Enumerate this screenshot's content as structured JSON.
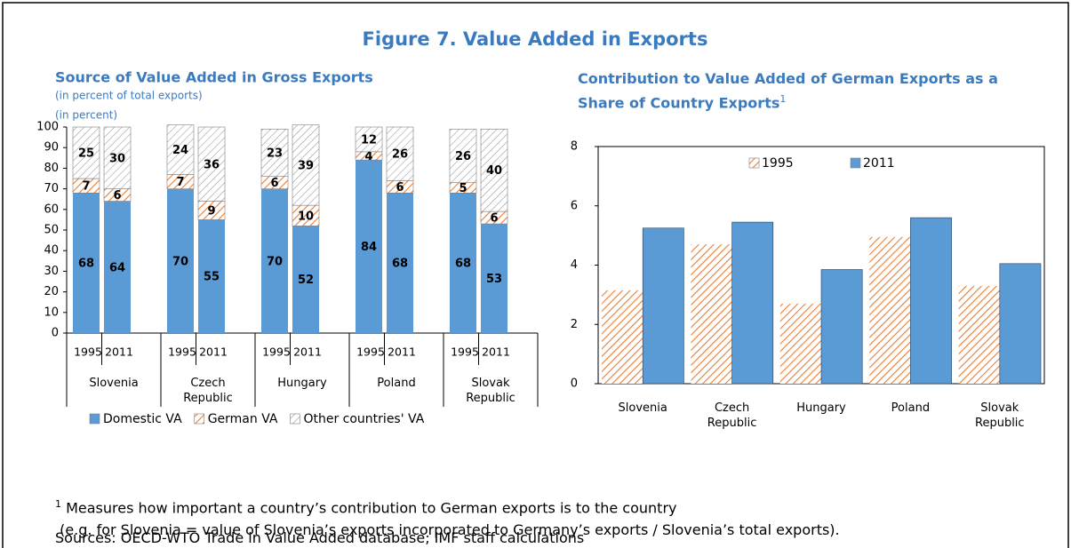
{
  "title": "Figure 7. Value Added in Exports",
  "chart_data": [
    {
      "type": "stacked-bar",
      "title": "Source of Value Added in Gross Exports",
      "subtitle": "(in percent of total exports)",
      "groups": [
        "Slovenia",
        "Czech Republic",
        "Hungary",
        "Poland",
        "Slovak Republic"
      ],
      "categories": [
        "1995",
        "2011",
        "1995",
        "2011",
        "1995",
        "2011",
        "1995",
        "2011",
        "1995",
        "2011"
      ],
      "series": [
        {
          "name": "Domestic VA",
          "color": "#5b9bd5",
          "pattern": "solid",
          "values": [
            68,
            64,
            70,
            55,
            70,
            52,
            84,
            68,
            68,
            53
          ]
        },
        {
          "name": "German VA",
          "color": "#ed7d31",
          "pattern": "hatch",
          "values": [
            7,
            6,
            7,
            9,
            6,
            10,
            4,
            6,
            5,
            6
          ]
        },
        {
          "name": "Other countries' VA",
          "color": "#7f7f7f",
          "pattern": "hatch",
          "values": [
            25,
            30,
            24,
            36,
            23,
            39,
            12,
            26,
            26,
            40
          ]
        }
      ],
      "ylim": [
        0,
        100
      ],
      "yticks": [
        0,
        10,
        20,
        30,
        40,
        50,
        60,
        70,
        80,
        90,
        100
      ],
      "grid": false,
      "legend": "bottom"
    },
    {
      "type": "bar",
      "title": "Contribution to Value Added of German Exports as a Share of Country Exports",
      "title_note": "1",
      "subtitle": "(in percent)",
      "categories": [
        "Slovenia",
        "Czech Republic",
        "Hungary",
        "Poland",
        "Slovak Republic"
      ],
      "series": [
        {
          "name": "1995",
          "color": "#ed7d31",
          "pattern": "hatch",
          "values": [
            3.15,
            4.7,
            2.7,
            4.95,
            3.3
          ]
        },
        {
          "name": "2011",
          "color": "#5b9bd5",
          "pattern": "solid",
          "values": [
            5.25,
            5.45,
            3.85,
            5.6,
            4.05
          ]
        }
      ],
      "ylim": [
        0,
        8
      ],
      "yticks": [
        0,
        2,
        4,
        6,
        8
      ],
      "grid": false,
      "legend": "top"
    }
  ],
  "footnote": {
    "marker": "1",
    "lines": [
      "Measures how important a country’s contribution to German exports is to the country",
      "(e.g. for Slovenia = value of Slovenia’s exports incorporated to Germany’s exports / Slovenia’s total exports)."
    ]
  },
  "sources": "Sources: OECD-WTO Trade in Value Added database; IMF staff calculations"
}
